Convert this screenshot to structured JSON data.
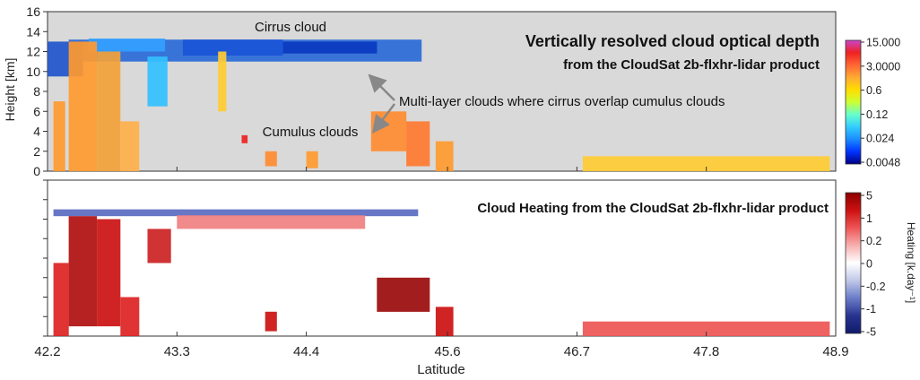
{
  "chart_data": [
    {
      "type": "heatmap",
      "title": "Vertically resolved cloud optical depth",
      "subtitle": "from the CloudSat 2b-flxhr-lidar product",
      "ylabel": "Height [km]",
      "ylim": [
        0,
        16
      ],
      "y_ticks": [
        "0",
        "2",
        "4",
        "6",
        "8",
        "10",
        "12",
        "14",
        "16"
      ],
      "colorbar": {
        "labels": [
          "15.000",
          "3.0000",
          "0.6",
          "0.12",
          "0.024",
          "0.0048"
        ],
        "colors": [
          "#000080",
          "#0033ff",
          "#1a8cff",
          "#33ccff",
          "#66ffcc",
          "#ccff33",
          "#ffdd00",
          "#ffaa33",
          "#ff6633",
          "#ee2222",
          "#cc44cc"
        ]
      },
      "annotations": [
        {
          "text": "Cirrus cloud",
          "lat": 43.6,
          "height": 13.5
        },
        {
          "text": "Multi-layer clouds where cirrus overlap cumulus clouds",
          "lat": 45.1,
          "height": 6.5
        },
        {
          "text": "Cumulus clouds",
          "lat": 44.0,
          "height": 4.0
        }
      ],
      "cloud_regions": [
        {
          "kind": "cirrus",
          "lat_start": 42.38,
          "lat_end": 45.38,
          "base_km": 11.0,
          "top_km": 13.2,
          "color": "#2a6ad8"
        },
        {
          "kind": "cirrus",
          "lat_start": 42.2,
          "lat_end": 42.5,
          "base_km": 9.5,
          "top_km": 13.0,
          "color": "#1f55cc"
        },
        {
          "kind": "cirrus",
          "lat_start": 42.55,
          "lat_end": 43.2,
          "base_km": 12.0,
          "top_km": 13.3,
          "color": "#33a0ff"
        },
        {
          "kind": "cirrus",
          "lat_start": 43.35,
          "lat_end": 44.2,
          "base_km": 11.6,
          "top_km": 13.2,
          "color": "#1a55d8"
        },
        {
          "kind": "cirrus",
          "lat_start": 44.2,
          "lat_end": 45.0,
          "base_km": 11.8,
          "top_km": 13.0,
          "color": "#0a3ac0"
        },
        {
          "kind": "deep",
          "lat_start": 42.25,
          "lat_end": 42.35,
          "base_km": 0.0,
          "top_km": 7.0,
          "color": "#ff9a30"
        },
        {
          "kind": "deep",
          "lat_start": 42.38,
          "lat_end": 42.62,
          "base_km": 0.0,
          "top_km": 13.0,
          "color": "#ff9a30"
        },
        {
          "kind": "deep",
          "lat_start": 42.62,
          "lat_end": 42.82,
          "base_km": 0.0,
          "top_km": 12.0,
          "color": "#f3a23a"
        },
        {
          "kind": "deep",
          "lat_start": 42.82,
          "lat_end": 42.98,
          "base_km": 0.0,
          "top_km": 5.0,
          "color": "#ffb04a"
        },
        {
          "kind": "anvil",
          "lat_start": 43.05,
          "lat_end": 43.22,
          "base_km": 6.5,
          "top_km": 11.5,
          "color": "#33c0ff"
        },
        {
          "kind": "anvil",
          "lat_start": 43.65,
          "lat_end": 43.72,
          "base_km": 6.0,
          "top_km": 12.0,
          "color": "#ffcc33"
        },
        {
          "kind": "cumulus",
          "lat_start": 44.95,
          "lat_end": 45.25,
          "base_km": 2.0,
          "top_km": 6.0,
          "color": "#ff8c30"
        },
        {
          "kind": "cumulus",
          "lat_start": 45.25,
          "lat_end": 45.45,
          "base_km": 0.5,
          "top_km": 5.0,
          "color": "#ff7a30"
        },
        {
          "kind": "cumulus",
          "lat_start": 45.5,
          "lat_end": 45.65,
          "base_km": 0.0,
          "top_km": 3.0,
          "color": "#ff9a30"
        },
        {
          "kind": "cumulus",
          "lat_start": 44.05,
          "lat_end": 44.15,
          "base_km": 0.5,
          "top_km": 2.0,
          "color": "#ff8c30"
        },
        {
          "kind": "cumulus",
          "lat_start": 43.85,
          "lat_end": 43.9,
          "base_km": 2.8,
          "top_km": 3.6,
          "color": "#ee2222"
        },
        {
          "kind": "cumulus",
          "lat_start": 44.4,
          "lat_end": 44.5,
          "base_km": 0.3,
          "top_km": 2.0,
          "color": "#ff9a30"
        },
        {
          "kind": "cumulus",
          "lat_start": 46.75,
          "lat_end": 48.85,
          "base_km": 0.0,
          "top_km": 1.5,
          "color": "#ffcc33"
        }
      ]
    },
    {
      "type": "heatmap",
      "title": "Cloud Heating from the CloudSat 2b-flxhr-lidar product",
      "xlabel": "Latitude",
      "x_ticks": [
        "42.2",
        "43.3",
        "44.4",
        "45.6",
        "46.7",
        "47.8",
        "48.9"
      ],
      "x_tick_values": [
        42.2,
        43.3,
        44.4,
        45.6,
        46.7,
        47.8,
        48.9
      ],
      "ylim": [
        0,
        16
      ],
      "colorbar": {
        "title": "Heating [k.day⁻¹]",
        "labels": [
          "5",
          "1",
          "0.2",
          "0",
          "-0.2",
          "-1",
          "-5"
        ],
        "colors": [
          "#8b0000",
          "#cc1111",
          "#ee5555",
          "#f7b0b0",
          "#ffffff",
          "#c0c8e8",
          "#6a7bc8",
          "#27348f",
          "#101a6a"
        ]
      },
      "cloud_regions": [
        {
          "kind": "cirrus_top",
          "lat_start": 42.25,
          "lat_end": 45.35,
          "base_km": 12.3,
          "top_km": 13.0,
          "color": "#5a6ac0"
        },
        {
          "kind": "cirrus",
          "lat_start": 43.3,
          "lat_end": 44.9,
          "base_km": 11.0,
          "top_km": 12.4,
          "color": "#f08080"
        },
        {
          "kind": "deep",
          "lat_start": 42.38,
          "lat_end": 42.62,
          "base_km": 1.0,
          "top_km": 12.3,
          "color": "#b00e0e"
        },
        {
          "kind": "deep",
          "lat_start": 42.62,
          "lat_end": 42.82,
          "base_km": 1.0,
          "top_km": 12.0,
          "color": "#cc1111"
        },
        {
          "kind": "deep",
          "lat_start": 42.25,
          "lat_end": 42.38,
          "base_km": 0.0,
          "top_km": 7.5,
          "color": "#dd2222"
        },
        {
          "kind": "deep",
          "lat_start": 42.82,
          "lat_end": 42.98,
          "base_km": 0.0,
          "top_km": 4.0,
          "color": "#dd2222"
        },
        {
          "kind": "anvil",
          "lat_start": 43.05,
          "lat_end": 43.25,
          "base_km": 7.5,
          "top_km": 11.0,
          "color": "#cc2222"
        },
        {
          "kind": "cumulus",
          "lat_start": 45.0,
          "lat_end": 45.45,
          "base_km": 2.5,
          "top_km": 6.0,
          "color": "#9a0b0b"
        },
        {
          "kind": "cumulus",
          "lat_start": 45.5,
          "lat_end": 45.65,
          "base_km": 0.0,
          "top_km": 3.0,
          "color": "#cc1111"
        },
        {
          "kind": "cumulus",
          "lat_start": 44.05,
          "lat_end": 44.15,
          "base_km": 0.5,
          "top_km": 2.5,
          "color": "#cc1111"
        },
        {
          "kind": "cumulus",
          "lat_start": 46.75,
          "lat_end": 48.85,
          "base_km": 0.0,
          "top_km": 1.5,
          "color": "#ee5555"
        }
      ]
    }
  ]
}
